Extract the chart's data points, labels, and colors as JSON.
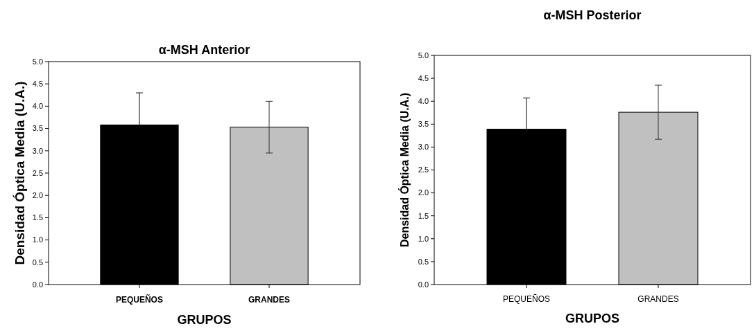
{
  "chart_data": [
    {
      "type": "bar",
      "title": "α-MSH Anterior",
      "xlabel": "GRUPOS",
      "ylabel": "Densidad Óptica Media (U.A.)",
      "categories": [
        "PEQUEÑOS",
        "GRANDES"
      ],
      "values": [
        3.58,
        3.53
      ],
      "colors": [
        "#000000",
        "#c0c0c0"
      ],
      "errors": [
        0.72,
        0.58
      ],
      "ylim": [
        0,
        5
      ],
      "yticks": [
        {
          "value": 0,
          "label": "0.0"
        },
        {
          "value": 0.5,
          "label": "0.5"
        },
        {
          "value": 1,
          "label": "1.0"
        },
        {
          "value": 1.5,
          "label": "1.5"
        },
        {
          "value": 2,
          "label": "2.0"
        },
        {
          "value": 2.5,
          "label": "2.5"
        },
        {
          "value": 3,
          "label": "3.0"
        },
        {
          "value": 3.5,
          "label": "3.5"
        },
        {
          "value": 4,
          "label": "4.0"
        },
        {
          "value": 4.5,
          "label": "4.5"
        },
        {
          "value": 5,
          "label": "5.0"
        }
      ]
    },
    {
      "type": "bar",
      "title": "α-MSH Posterior",
      "xlabel": "GRUPOS",
      "ylabel": "Densidad Óptica Media (U.A.)",
      "categories": [
        "PEQUEÑOS",
        "GRANDES"
      ],
      "values": [
        3.39,
        3.76
      ],
      "colors": [
        "#000000",
        "#c0c0c0"
      ],
      "errors": [
        0.68,
        0.59
      ],
      "ylim": [
        0,
        5
      ],
      "yticks": [
        {
          "value": 0,
          "label": "0.0"
        },
        {
          "value": 0.5,
          "label": "0.5"
        },
        {
          "value": 1,
          "label": "1.0"
        },
        {
          "value": 1.5,
          "label": "1.5"
        },
        {
          "value": 2,
          "label": "2.0"
        },
        {
          "value": 2.5,
          "label": "2.5"
        },
        {
          "value": 3,
          "label": "3.0"
        },
        {
          "value": 3.5,
          "label": "3.5"
        },
        {
          "value": 4,
          "label": "4.0"
        },
        {
          "value": 4.5,
          "label": "4.5"
        },
        {
          "value": 5,
          "label": "5.0"
        }
      ]
    }
  ]
}
